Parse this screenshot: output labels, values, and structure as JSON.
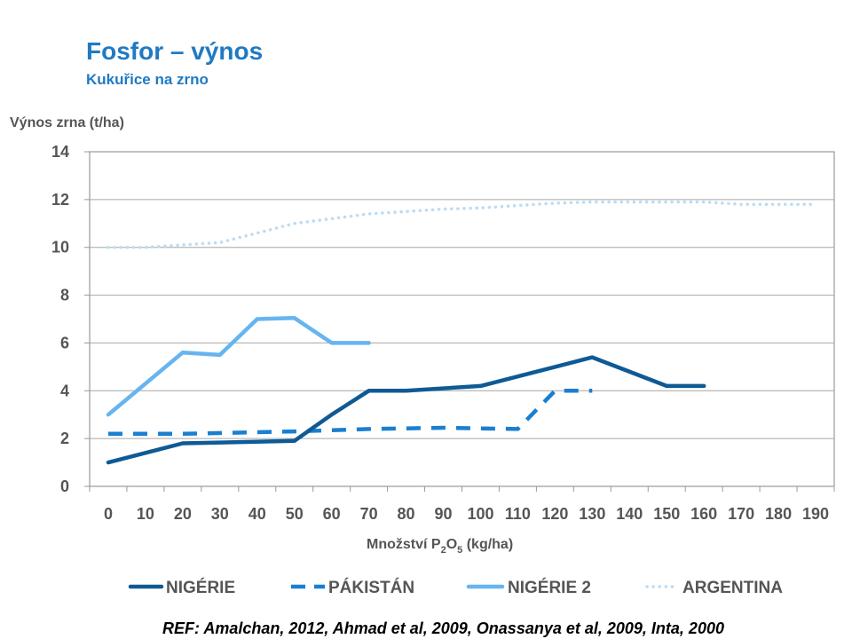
{
  "chart_data": {
    "type": "line",
    "title": "Fosfor – výnos",
    "subtitle": "Kukuřice na zrno",
    "ylabel": "Výnos zrna (t/ha)",
    "xlabel_main": "Množství P",
    "xlabel_sub1": "2",
    "xlabel_mid": "O",
    "xlabel_sub2": "5",
    "xlabel_tail": " (kg/ha)",
    "xlim": [
      0,
      190
    ],
    "ylim": [
      0,
      14
    ],
    "y_ticks": [
      "0",
      "2",
      "4",
      "6",
      "8",
      "10",
      "12",
      "14"
    ],
    "x_ticks": [
      "0",
      "10",
      "20",
      "30",
      "40",
      "50",
      "60",
      "70",
      "80",
      "90",
      "100",
      "110",
      "120",
      "130",
      "140",
      "150",
      "160",
      "170",
      "180",
      "190"
    ],
    "grid": "horizontal",
    "legend_position": "bottom",
    "series": [
      {
        "name": "NIGÉRIE",
        "color": "#0e5a95",
        "style": "solid",
        "x": [
          0,
          20,
          50,
          60,
          70,
          80,
          100,
          130,
          150,
          160
        ],
        "y": [
          1.0,
          1.8,
          1.9,
          3.0,
          4.0,
          4.0,
          4.2,
          5.4,
          4.2,
          4.2
        ]
      },
      {
        "name": "PÁKISTÁN",
        "color": "#1a7fd0",
        "style": "dashed",
        "x": [
          0,
          20,
          50,
          70,
          90,
          110,
          120,
          130
        ],
        "y": [
          2.2,
          2.2,
          2.3,
          2.4,
          2.45,
          2.4,
          4.0,
          4.0
        ]
      },
      {
        "name": "NIGÉRIE 2",
        "color": "#66b5f0",
        "style": "solid",
        "x": [
          0,
          20,
          30,
          40,
          50,
          60,
          70
        ],
        "y": [
          3.0,
          5.6,
          5.5,
          7.0,
          7.05,
          6.0,
          6.0
        ]
      },
      {
        "name": "ARGENTINA",
        "color": "#bcdcf3",
        "style": "dotted",
        "x": [
          0,
          10,
          20,
          30,
          40,
          50,
          60,
          70,
          80,
          90,
          100,
          110,
          120,
          130,
          140,
          150,
          160,
          170,
          180,
          190
        ],
        "y": [
          10.0,
          10.0,
          10.1,
          10.2,
          10.6,
          11.0,
          11.2,
          11.4,
          11.5,
          11.6,
          11.65,
          11.75,
          11.85,
          11.9,
          11.9,
          11.9,
          11.9,
          11.8,
          11.8,
          11.8
        ]
      }
    ]
  },
  "reference": "REF: Amalchan, 2012, Ahmad et al, 2009, Onassanya et al, 2009, Inta, 2000"
}
